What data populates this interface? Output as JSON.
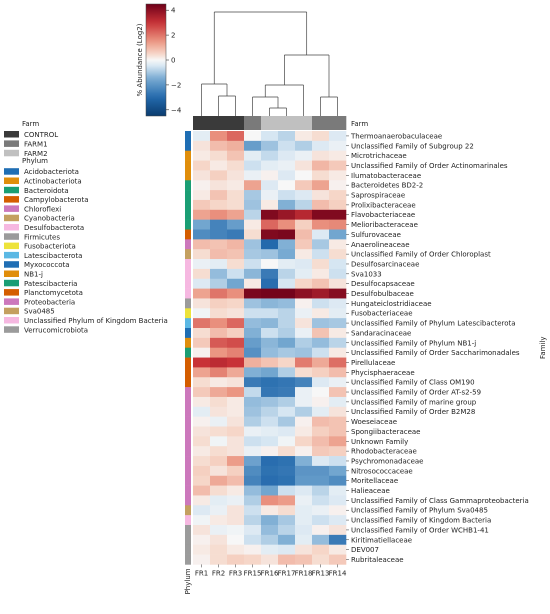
{
  "chart_data": {
    "type": "heatmap",
    "colorbar": {
      "label": "% Abundance (Log2)",
      "ticks": [
        4,
        2,
        0,
        -2,
        -4
      ],
      "range": [
        -4.5,
        4.5
      ],
      "colormap": "diverging blue-white-red"
    },
    "columns": [
      "FR1",
      "FR2",
      "FR3",
      "FR15",
      "FR16",
      "FR17",
      "FR18",
      "FR13",
      "FR14"
    ],
    "col_farm": [
      "CONTROL",
      "CONTROL",
      "CONTROL",
      "FARM1",
      "FARM2",
      "FARM2",
      "FARM2",
      "FARM1",
      "FARM1"
    ],
    "col_annotation_label": "Farm",
    "row_annotation_label": "Phylum",
    "row_axis_label": "Family",
    "farm_legend": {
      "title": "Farm",
      "items": [
        {
          "name": "CONTROL",
          "color": "#3a3a3a"
        },
        {
          "name": "FARM1",
          "color": "#7a7a7a"
        },
        {
          "name": "FARM2",
          "color": "#c0c0c0"
        }
      ]
    },
    "phylum_legend": {
      "title": "Phylum",
      "items": [
        {
          "name": "Acidobacteriota",
          "color": "#1f6eb4"
        },
        {
          "name": "Actinobacteriota",
          "color": "#e08e0b"
        },
        {
          "name": "Bacteroidota",
          "color": "#1a9e74"
        },
        {
          "name": "Campylobacterota",
          "color": "#d45d00"
        },
        {
          "name": "Chloroflexi",
          "color": "#cc78bc"
        },
        {
          "name": "Cyanobacteria",
          "color": "#c4a060"
        },
        {
          "name": "Desulfobacterota",
          "color": "#f6b8e1"
        },
        {
          "name": "Firmicutes",
          "color": "#9b9b9b"
        },
        {
          "name": "Fusobacteriota",
          "color": "#ede33a"
        },
        {
          "name": "Latescibacterota",
          "color": "#5bb8e4"
        },
        {
          "name": "Myxococcota",
          "color": "#1f6eb4"
        },
        {
          "name": "NB1-j",
          "color": "#e08e0b"
        },
        {
          "name": "Patescibacteria",
          "color": "#1a9e74"
        },
        {
          "name": "Planctomycetota",
          "color": "#d45d00"
        },
        {
          "name": "Proteobacteria",
          "color": "#cc78bc"
        },
        {
          "name": "Sva0485",
          "color": "#c4a060"
        },
        {
          "name": "Unclassified Phylum of Kingdom Bacteria",
          "color": "#f6b8e1"
        },
        {
          "name": "Verrucomicrobiota",
          "color": "#9b9b9b"
        }
      ]
    },
    "rows": [
      {
        "family": "Thermoanaerobaculaceae",
        "phylum": "Acidobacteriota",
        "values": [
          -0.3,
          1.6,
          2.2,
          0.0,
          -0.5,
          -0.8,
          0.2,
          0.4,
          -0.4
        ]
      },
      {
        "family": "Unclassified Family of Subgroup 22",
        "phylum": "Acidobacteriota",
        "values": [
          0.3,
          0.9,
          1.1,
          -1.8,
          -1.1,
          -0.6,
          -0.9,
          -0.4,
          -0.2
        ]
      },
      {
        "family": "Microtrichaceae",
        "phylum": "Actinobacteriota",
        "values": [
          0.2,
          0.4,
          0.8,
          -0.3,
          -0.7,
          -0.4,
          -0.2,
          0.3,
          0.2
        ]
      },
      {
        "family": "Unclassified Family of Order Actinomarinales",
        "phylum": "Actinobacteriota",
        "values": [
          0.5,
          0.2,
          0.4,
          -0.6,
          -0.3,
          -0.2,
          0.3,
          1.0,
          0.7
        ]
      },
      {
        "family": "Ilumatobacteraceae",
        "phylum": "Actinobacteriota",
        "values": [
          0.3,
          0.6,
          0.3,
          -0.2,
          0.1,
          -0.4,
          0.0,
          0.4,
          0.2
        ]
      },
      {
        "family": "Bacteroidetes BD2-2",
        "phylum": "Bacteroidota",
        "values": [
          0.1,
          0.3,
          0.2,
          1.3,
          -0.4,
          0.0,
          0.7,
          1.3,
          0.1
        ]
      },
      {
        "family": "Saprospiraceae",
        "phylum": "Bacteroidota",
        "values": [
          0.2,
          0.8,
          0.4,
          -1.0,
          -0.2,
          -0.6,
          -0.4,
          0.3,
          0.5
        ]
      },
      {
        "family": "Prolixibacteraceae",
        "phylum": "Bacteroidota",
        "values": [
          0.7,
          0.5,
          0.4,
          -1.1,
          0.2,
          -1.4,
          -0.8,
          0.9,
          0.6
        ]
      },
      {
        "family": "Flavobacteriaceae",
        "phylum": "Bacteroidota",
        "values": [
          1.3,
          1.6,
          1.3,
          -0.8,
          4.2,
          3.8,
          3.3,
          4.2,
          4.2
        ]
      },
      {
        "family": "Melioribacteraceae",
        "phylum": "Bacteroidota",
        "values": [
          -1.6,
          -2.4,
          -1.8,
          0.2,
          2.2,
          1.6,
          0.6,
          1.6,
          1.7
        ]
      },
      {
        "family": "Sulfurovaceae",
        "phylum": "Campylobacterota",
        "values": [
          -2.2,
          -2.4,
          -2.6,
          0.4,
          4.2,
          4.3,
          0.9,
          -0.4,
          -1.6
        ]
      },
      {
        "family": "Anaerolineaceae",
        "phylum": "Chloroflexi",
        "values": [
          0.9,
          0.8,
          1.0,
          -1.1,
          -3.0,
          -1.4,
          0.7,
          -1.0,
          0.2
        ]
      },
      {
        "family": "Unclassified Family of Order Chloroplast",
        "phylum": "Cyanobacteria",
        "values": [
          0.4,
          0.9,
          0.8,
          -1.0,
          -1.1,
          -1.5,
          0.2,
          -0.6,
          0.4
        ]
      },
      {
        "family": "Desulfosarcinaceae",
        "phylum": "Desulfobacterota",
        "values": [
          -0.2,
          -0.3,
          0.4,
          -0.6,
          0.0,
          -0.3,
          -0.4,
          0.4,
          -0.5
        ]
      },
      {
        "family": "Sva1033",
        "phylum": "Desulfobacterota",
        "values": [
          0.4,
          -1.2,
          -0.6,
          -1.3,
          -2.6,
          -0.8,
          -0.3,
          0.2,
          -0.6
        ]
      },
      {
        "family": "Desulfocapsaceae",
        "phylum": "Desulfobacterota",
        "values": [
          -0.4,
          -0.9,
          -1.6,
          0.2,
          -2.9,
          -0.5,
          0.5,
          0.8,
          0.3
        ]
      },
      {
        "family": "Desulfobulbaceae",
        "phylum": "Desulfobacterota",
        "values": [
          1.3,
          2.0,
          1.6,
          4.3,
          4.4,
          4.4,
          4.0,
          3.7,
          4.1
        ]
      },
      {
        "family": "Hungateiclostridiaceae",
        "phylum": "Firmicutes",
        "values": [
          0.3,
          0.6,
          0.5,
          -1.1,
          -1.3,
          -1.2,
          0.1,
          -0.6,
          -0.4
        ]
      },
      {
        "family": "Fusobacteriaceae",
        "phylum": "Fusobacteriota",
        "values": [
          -0.1,
          0.4,
          0.3,
          -0.6,
          -0.6,
          -0.8,
          -0.2,
          0.2,
          -0.3
        ]
      },
      {
        "family": "Unclassified Family of Phylum Latescibacterota",
        "phylum": "Latescibacterota",
        "values": [
          2.0,
          1.6,
          2.2,
          -1.2,
          -1.3,
          -0.8,
          0.3,
          -1.1,
          -1.0
        ]
      },
      {
        "family": "Sandaracinaceae",
        "phylum": "Myxococcota",
        "values": [
          0.4,
          0.9,
          0.6,
          -1.4,
          -0.6,
          -0.9,
          -0.2,
          0.8,
          0.2
        ]
      },
      {
        "family": "Unclassified Family of Phylum NB1-j",
        "phylum": "NB1-j",
        "values": [
          0.7,
          2.4,
          2.6,
          -1.8,
          -1.3,
          -1.6,
          -0.9,
          -1.2,
          -0.8
        ]
      },
      {
        "family": "Unclassified Family of Order Saccharimonadales",
        "phylum": "Patescibacteria",
        "values": [
          0.1,
          1.5,
          1.8,
          -2.1,
          -1.2,
          -1.0,
          -1.1,
          -0.6,
          0.2
        ]
      },
      {
        "family": "Pirellulaceae",
        "phylum": "Planctomycetota",
        "values": [
          3.0,
          3.2,
          3.0,
          1.1,
          0.8,
          0.5,
          1.9,
          1.2,
          2.1
        ]
      },
      {
        "family": "Phycisphaeraceae",
        "phylum": "Planctomycetota",
        "values": [
          1.3,
          1.8,
          1.2,
          -1.4,
          -1.6,
          -0.9,
          0.4,
          0.6,
          0.9
        ]
      },
      {
        "family": "Unclassified Family of Class OM190",
        "phylum": "Planctomycetota",
        "values": [
          0.4,
          0.2,
          0.3,
          -2.6,
          -2.8,
          -2.7,
          -2.4,
          -0.4,
          -0.2
        ]
      },
      {
        "family": "Unclassified Family of Order AT-s2-59",
        "phylum": "Proteobacteria",
        "values": [
          0.7,
          1.2,
          1.5,
          -0.7,
          -2.7,
          -2.6,
          -0.2,
          0.0,
          0.8
        ]
      },
      {
        "family": "Unclassified Family of marine group",
        "phylum": "Proteobacteria",
        "values": [
          0.2,
          0.4,
          0.2,
          -1.2,
          -1.1,
          -0.9,
          -0.2,
          0.1,
          -0.3
        ]
      },
      {
        "family": "Unclassified Family of Order B2M28",
        "phylum": "Proteobacteria",
        "values": [
          -0.3,
          0.3,
          0.2,
          -1.1,
          -0.8,
          -0.5,
          -0.9,
          -0.3,
          0.3
        ]
      },
      {
        "family": "Woeseiaceae",
        "phylum": "Proteobacteria",
        "values": [
          0.1,
          -0.2,
          0.3,
          -0.9,
          -0.6,
          -1.0,
          0.1,
          0.9,
          0.8
        ]
      },
      {
        "family": "Spongiibacteraceae",
        "phylum": "Proteobacteria",
        "values": [
          0.3,
          0.4,
          0.5,
          -0.2,
          -0.3,
          -0.4,
          0.2,
          0.6,
          0.8
        ]
      },
      {
        "family": "Unknown Family",
        "phylum": "Proteobacteria",
        "values": [
          0.4,
          -0.1,
          0.3,
          -0.6,
          -0.5,
          -0.1,
          0.5,
          0.9,
          1.3
        ]
      },
      {
        "family": "Rhodobacteraceae",
        "phylum": "Proteobacteria",
        "values": [
          0.2,
          0.4,
          0.3,
          -0.2,
          0.1,
          0.4,
          0.1,
          0.7,
          0.6
        ]
      },
      {
        "family": "Psychromonadaceae",
        "phylum": "Proteobacteria",
        "values": [
          0.4,
          0.6,
          1.4,
          -1.7,
          -2.9,
          -2.8,
          -1.4,
          -0.4,
          -0.6
        ]
      },
      {
        "family": "Nitrosococcaceae",
        "phylum": "Proteobacteria",
        "values": [
          0.6,
          0.3,
          0.6,
          -2.2,
          -2.8,
          -2.7,
          -2.0,
          -2.0,
          -1.6
        ]
      },
      {
        "family": "Moritellaceae",
        "phylum": "Proteobacteria",
        "values": [
          0.5,
          1.2,
          0.9,
          -2.4,
          -2.9,
          -2.8,
          -1.9,
          -1.9,
          -2.2
        ]
      },
      {
        "family": "Halieaceae",
        "phylum": "Proteobacteria",
        "values": [
          0.9,
          0.4,
          0.2,
          -1.2,
          -1.6,
          -0.6,
          -0.4,
          -0.8,
          -0.3
        ]
      },
      {
        "family": "Unclassified Family of Class Gammaproteobacteria",
        "phylum": "Proteobacteria",
        "values": [
          0.2,
          -0.3,
          -0.2,
          -0.9,
          1.6,
          1.4,
          -0.2,
          -0.6,
          -0.4
        ]
      },
      {
        "family": "Unclassified Family of Phylum Sva0485",
        "phylum": "Sva0485",
        "values": [
          -0.4,
          -0.2,
          0.3,
          -0.6,
          0.2,
          0.4,
          -0.3,
          -0.2,
          0.1
        ]
      },
      {
        "family": "Unclassified Family of Kingdom Bacteria",
        "phylum": "Unclassified Phylum of Kingdom Bacteria",
        "values": [
          -0.1,
          0.2,
          0.3,
          -0.8,
          -1.4,
          -1.0,
          -0.3,
          -0.6,
          -0.4
        ]
      },
      {
        "family": "Unclassified Family of Order WCHB1-41",
        "phylum": "Verrucomicrobiota",
        "values": [
          0.3,
          -0.2,
          -0.1,
          -0.4,
          -1.2,
          -0.8,
          -0.4,
          0.1,
          0.3
        ]
      },
      {
        "family": "Kiritimatiellaceae",
        "phylum": "Verrucomicrobiota",
        "values": [
          0.1,
          0.3,
          0.0,
          -0.6,
          -0.9,
          -1.4,
          -0.3,
          -1.2,
          -2.6
        ]
      },
      {
        "family": "DEV007",
        "phylum": "Verrucomicrobiota",
        "values": [
          0.2,
          0.4,
          0.2,
          0.1,
          -0.3,
          -0.4,
          0.3,
          0.5,
          0.2
        ]
      },
      {
        "family": "Rubritaleaceae",
        "phylum": "Verrucomicrobiota",
        "values": [
          0.1,
          0.4,
          0.6,
          0.5,
          0.3,
          0.9,
          0.8,
          0.4,
          0.7
        ]
      }
    ]
  }
}
